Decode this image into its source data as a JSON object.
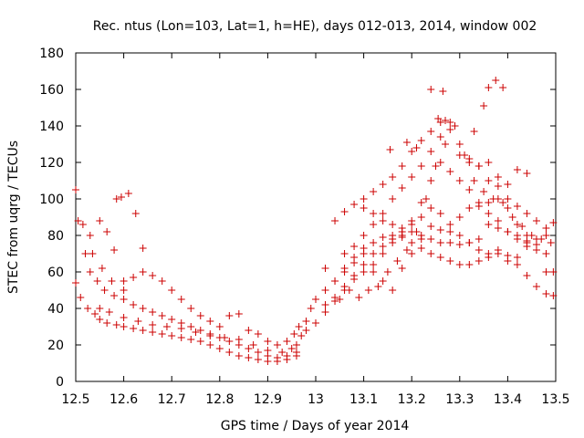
{
  "chart_data": {
    "type": "scatter",
    "title": "Rec. ntus (Lon=103, Lat=1, h=HE), days 012-013, 2014, window 002",
    "xlabel": "GPS time / Days of year 2014",
    "ylabel": "STEC from uqrg / TECUs",
    "xlim": [
      12.5,
      13.5
    ],
    "ylim": [
      0,
      180
    ],
    "xticks": [
      "12.5",
      "12.6",
      "12.7",
      "12.8",
      "12.9",
      "13",
      "13.1",
      "13.2",
      "13.3",
      "13.4",
      "13.5"
    ],
    "yticks": [
      "0",
      "20",
      "40",
      "60",
      "80",
      "100",
      "120",
      "140",
      "160",
      "180"
    ],
    "grid": false,
    "legend": "none",
    "marker": "plus",
    "color": "#cc0000",
    "series": [
      {
        "points": [
          [
            12.5,
            105
          ],
          [
            12.505,
            88
          ],
          [
            12.515,
            86
          ],
          [
            12.53,
            80
          ],
          [
            12.55,
            88
          ],
          [
            12.565,
            82
          ],
          [
            12.58,
            72
          ],
          [
            12.585,
            100
          ],
          [
            12.595,
            101
          ],
          [
            12.61,
            103
          ],
          [
            12.625,
            92
          ],
          [
            12.64,
            73
          ],
          [
            12.52,
            70
          ],
          [
            12.535,
            70
          ],
          [
            12.555,
            62
          ],
          [
            12.575,
            55
          ],
          [
            12.6,
            50
          ]
        ]
      },
      {
        "points": [
          [
            12.5,
            54
          ],
          [
            12.51,
            46
          ],
          [
            12.525,
            40
          ],
          [
            12.54,
            37
          ],
          [
            12.55,
            34
          ],
          [
            12.565,
            32
          ],
          [
            12.585,
            31
          ],
          [
            12.6,
            30
          ],
          [
            12.62,
            29
          ],
          [
            12.64,
            28
          ],
          [
            12.66,
            27
          ],
          [
            12.68,
            26
          ],
          [
            12.7,
            25
          ],
          [
            12.72,
            24
          ],
          [
            12.74,
            23
          ],
          [
            12.76,
            22
          ],
          [
            12.78,
            20
          ],
          [
            12.8,
            18
          ],
          [
            12.82,
            16
          ],
          [
            12.84,
            14
          ],
          [
            12.86,
            13
          ],
          [
            12.88,
            12
          ],
          [
            12.9,
            11
          ],
          [
            12.92,
            11
          ],
          [
            12.94,
            12
          ],
          [
            12.96,
            14
          ]
        ]
      },
      {
        "points": [
          [
            12.53,
            60
          ],
          [
            12.545,
            55
          ],
          [
            12.56,
            50
          ],
          [
            12.58,
            47
          ],
          [
            12.6,
            45
          ],
          [
            12.62,
            42
          ],
          [
            12.64,
            40
          ],
          [
            12.66,
            38
          ],
          [
            12.68,
            36
          ],
          [
            12.7,
            34
          ],
          [
            12.72,
            32
          ],
          [
            12.74,
            30
          ],
          [
            12.76,
            28
          ],
          [
            12.78,
            26
          ],
          [
            12.8,
            24
          ],
          [
            12.82,
            22
          ],
          [
            12.84,
            20
          ],
          [
            12.86,
            18
          ],
          [
            12.88,
            16
          ],
          [
            12.9,
            14
          ],
          [
            12.92,
            13
          ],
          [
            12.94,
            14
          ],
          [
            12.96,
            16
          ]
        ]
      },
      {
        "points": [
          [
            12.6,
            55
          ],
          [
            12.62,
            57
          ],
          [
            12.64,
            60
          ],
          [
            12.66,
            58
          ],
          [
            12.68,
            55
          ],
          [
            12.7,
            50
          ],
          [
            12.72,
            45
          ],
          [
            12.74,
            40
          ],
          [
            12.76,
            36
          ],
          [
            12.78,
            33
          ],
          [
            12.8,
            30
          ],
          [
            12.82,
            36
          ],
          [
            12.84,
            37
          ],
          [
            12.86,
            28
          ],
          [
            12.88,
            26
          ],
          [
            12.9,
            22
          ],
          [
            12.92,
            20
          ],
          [
            12.94,
            22
          ],
          [
            12.955,
            26
          ],
          [
            12.965,
            30
          ]
        ]
      },
      {
        "points": [
          [
            12.55,
            40
          ],
          [
            12.57,
            38
          ],
          [
            12.6,
            35
          ],
          [
            12.63,
            33
          ],
          [
            12.66,
            31
          ],
          [
            12.69,
            30
          ],
          [
            12.72,
            29
          ],
          [
            12.75,
            27
          ],
          [
            12.78,
            25
          ],
          [
            12.81,
            24
          ],
          [
            12.84,
            23
          ],
          [
            12.87,
            20
          ],
          [
            12.9,
            17
          ],
          [
            12.93,
            16
          ],
          [
            12.95,
            18
          ]
        ]
      },
      {
        "points": [
          [
            12.96,
            20
          ],
          [
            12.97,
            25
          ],
          [
            12.98,
            33
          ],
          [
            12.99,
            40
          ],
          [
            13.0,
            45
          ],
          [
            13.02,
            50
          ],
          [
            13.04,
            55
          ],
          [
            13.06,
            62
          ],
          [
            13.08,
            68
          ],
          [
            13.1,
            73
          ],
          [
            13.12,
            76
          ],
          [
            13.14,
            79
          ],
          [
            13.16,
            80
          ],
          [
            13.18,
            79
          ],
          [
            13.2,
            76
          ],
          [
            13.22,
            73
          ],
          [
            13.24,
            70
          ],
          [
            13.26,
            68
          ],
          [
            13.28,
            66
          ],
          [
            13.3,
            64
          ],
          [
            13.32,
            64
          ],
          [
            13.34,
            66
          ],
          [
            13.36,
            68
          ],
          [
            13.38,
            70
          ],
          [
            13.4,
            69
          ],
          [
            13.42,
            68
          ],
          [
            13.44,
            74
          ],
          [
            13.46,
            78
          ],
          [
            13.48,
            80
          ],
          [
            13.495,
            87
          ]
        ]
      },
      {
        "points": [
          [
            12.98,
            28
          ],
          [
            13.0,
            32
          ],
          [
            13.02,
            38
          ],
          [
            13.04,
            44
          ],
          [
            13.06,
            50
          ],
          [
            13.08,
            58
          ],
          [
            13.1,
            64
          ],
          [
            13.12,
            70
          ],
          [
            13.14,
            74
          ],
          [
            13.16,
            78
          ],
          [
            13.18,
            82
          ],
          [
            13.2,
            86
          ],
          [
            13.22,
            90
          ],
          [
            13.24,
            95
          ],
          [
            13.26,
            92
          ],
          [
            13.28,
            86
          ],
          [
            13.3,
            80
          ],
          [
            13.32,
            76
          ],
          [
            13.34,
            72
          ],
          [
            13.36,
            70
          ],
          [
            13.38,
            72
          ],
          [
            13.4,
            66
          ],
          [
            13.42,
            64
          ],
          [
            13.44,
            58
          ],
          [
            13.46,
            52
          ],
          [
            13.48,
            48
          ],
          [
            13.495,
            47
          ]
        ]
      },
      {
        "points": [
          [
            13.02,
            42
          ],
          [
            13.04,
            46
          ],
          [
            13.06,
            52
          ],
          [
            13.08,
            56
          ],
          [
            13.1,
            60
          ],
          [
            13.12,
            64
          ],
          [
            13.14,
            70
          ],
          [
            13.16,
            76
          ],
          [
            13.18,
            80
          ],
          [
            13.2,
            88
          ],
          [
            13.22,
            98
          ],
          [
            13.24,
            110
          ],
          [
            13.26,
            120
          ],
          [
            13.28,
            115
          ],
          [
            13.3,
            110
          ],
          [
            13.32,
            105
          ],
          [
            13.34,
            98
          ],
          [
            13.36,
            92
          ],
          [
            13.38,
            88
          ],
          [
            13.4,
            82
          ],
          [
            13.42,
            80
          ],
          [
            13.44,
            77
          ],
          [
            13.46,
            72
          ],
          [
            13.48,
            70
          ],
          [
            13.495,
            60
          ]
        ]
      },
      {
        "points": [
          [
            13.05,
            45
          ],
          [
            13.07,
            50
          ],
          [
            13.09,
            46
          ],
          [
            13.11,
            50
          ],
          [
            13.13,
            52
          ],
          [
            13.15,
            60
          ],
          [
            13.17,
            66
          ],
          [
            13.19,
            72
          ],
          [
            13.21,
            82
          ],
          [
            13.23,
            100
          ],
          [
            13.25,
            118
          ],
          [
            13.27,
            130
          ],
          [
            13.29,
            140
          ],
          [
            13.31,
            124
          ],
          [
            13.33,
            110
          ],
          [
            13.35,
            104
          ],
          [
            13.37,
            100
          ],
          [
            13.39,
            98
          ],
          [
            13.41,
            90
          ],
          [
            13.43,
            85
          ],
          [
            13.45,
            80
          ],
          [
            13.47,
            78
          ],
          [
            13.49,
            76
          ]
        ]
      },
      {
        "points": [
          [
            13.04,
            88
          ],
          [
            13.06,
            93
          ],
          [
            13.08,
            97
          ],
          [
            13.1,
            100
          ],
          [
            13.12,
            104
          ],
          [
            13.14,
            108
          ],
          [
            13.16,
            112
          ],
          [
            13.18,
            118
          ],
          [
            13.2,
            126
          ],
          [
            13.22,
            132
          ],
          [
            13.24,
            137
          ],
          [
            13.26,
            142
          ],
          [
            13.28,
            138
          ],
          [
            13.3,
            130
          ],
          [
            13.32,
            122
          ],
          [
            13.34,
            118
          ],
          [
            13.36,
            110
          ],
          [
            13.38,
            107
          ],
          [
            13.4,
            100
          ],
          [
            13.42,
            96
          ],
          [
            13.44,
            92
          ],
          [
            13.46,
            88
          ],
          [
            13.48,
            84
          ]
        ]
      },
      {
        "points": [
          [
            13.1,
            95
          ],
          [
            13.12,
            92
          ],
          [
            13.14,
            88
          ],
          [
            13.16,
            86
          ],
          [
            13.18,
            84
          ],
          [
            13.2,
            82
          ],
          [
            13.22,
            80
          ],
          [
            13.24,
            78
          ],
          [
            13.26,
            76
          ],
          [
            13.28,
            76
          ],
          [
            13.3,
            75
          ],
          [
            13.32,
            76
          ],
          [
            13.34,
            78
          ],
          [
            13.36,
            86
          ],
          [
            13.38,
            84
          ],
          [
            13.4,
            82
          ],
          [
            13.42,
            78
          ],
          [
            13.44,
            76
          ]
        ]
      },
      {
        "points": [
          [
            13.06,
            70
          ],
          [
            13.08,
            74
          ],
          [
            13.1,
            80
          ],
          [
            13.12,
            86
          ],
          [
            13.14,
            92
          ],
          [
            13.16,
            100
          ],
          [
            13.18,
            106
          ],
          [
            13.2,
            112
          ],
          [
            13.22,
            118
          ],
          [
            13.24,
            126
          ],
          [
            13.26,
            134
          ],
          [
            13.28,
            142
          ],
          [
            13.3,
            124
          ],
          [
            13.32,
            120
          ],
          [
            13.34,
            118
          ],
          [
            13.36,
            120
          ],
          [
            13.38,
            112
          ],
          [
            13.4,
            108
          ],
          [
            13.42,
            116
          ],
          [
            13.44,
            114
          ]
        ]
      },
      {
        "points": [
          [
            13.24,
            160
          ],
          [
            13.265,
            159
          ],
          [
            13.33,
            137
          ],
          [
            13.35,
            151
          ],
          [
            13.36,
            161
          ],
          [
            13.375,
            165
          ],
          [
            13.39,
            161
          ],
          [
            13.255,
            144
          ],
          [
            13.27,
            143
          ],
          [
            13.19,
            131
          ],
          [
            13.21,
            128
          ],
          [
            13.155,
            127
          ]
        ]
      },
      {
        "points": [
          [
            13.02,
            62
          ],
          [
            13.04,
            55
          ],
          [
            13.06,
            60
          ],
          [
            13.08,
            65
          ],
          [
            13.1,
            70
          ],
          [
            13.12,
            60
          ],
          [
            13.14,
            55
          ],
          [
            13.16,
            50
          ],
          [
            13.18,
            62
          ],
          [
            13.2,
            70
          ],
          [
            13.22,
            78
          ],
          [
            13.24,
            85
          ],
          [
            13.26,
            83
          ],
          [
            13.28,
            82
          ],
          [
            13.3,
            90
          ],
          [
            13.32,
            95
          ],
          [
            13.34,
            96
          ],
          [
            13.36,
            98
          ],
          [
            13.38,
            100
          ],
          [
            13.4,
            95
          ],
          [
            13.42,
            86
          ],
          [
            13.44,
            80
          ],
          [
            13.46,
            75
          ],
          [
            13.48,
            60
          ]
        ]
      }
    ]
  }
}
